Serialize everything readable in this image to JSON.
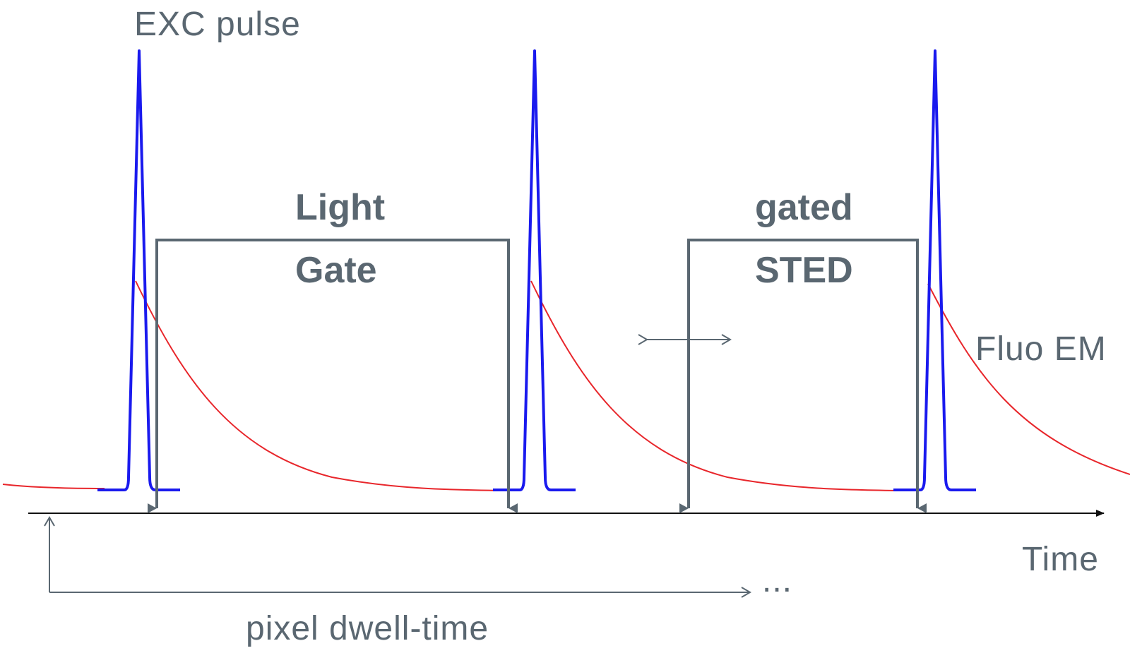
{
  "labels": {
    "exc_pulse": "EXC pulse",
    "light": "Light",
    "gate": "Gate",
    "gated": "gated",
    "sted": "STED",
    "fluo_em": "Fluo EM",
    "time": "Time",
    "pixel_dwell_time": "pixel dwell-time",
    "ellipsis": "..."
  },
  "colors": {
    "excitation_pulse": "#1a1aee",
    "fluorescence_emission": "#e8262b",
    "gate_and_labels": "#5a6771",
    "time_axis": "#111111"
  }
}
